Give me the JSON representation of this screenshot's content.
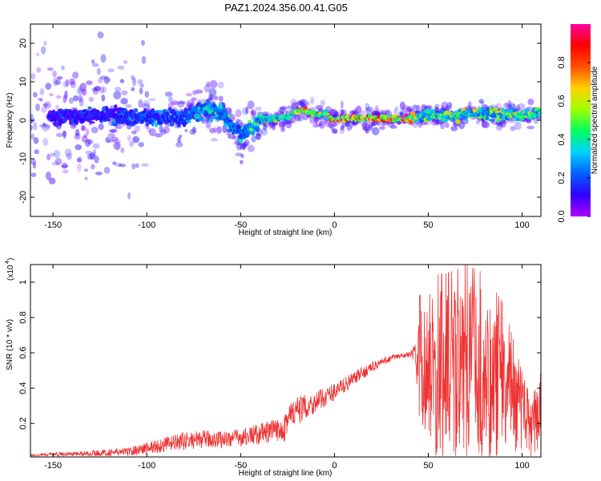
{
  "title": "PAZ1.2024.356.00.41.G05",
  "chart_data": [
    {
      "type": "heatmap",
      "xlabel": "Height of straight line (km)",
      "ylabel": "Frequency (Hz)",
      "xlim": [
        -162,
        110
      ],
      "ylim": [
        -25,
        25
      ],
      "xticks": [
        -150,
        -100,
        -50,
        0,
        50,
        100
      ],
      "yticks": [
        -20,
        -10,
        0,
        10,
        20
      ],
      "colorbar": {
        "label": "Normalized spectral amplitude",
        "range": [
          0,
          1
        ],
        "ticks": [
          0.0,
          0.2,
          0.4,
          0.6,
          0.8
        ],
        "colormap": [
          "#b000ff",
          "#3000ff",
          "#0060ff",
          "#00d0ff",
          "#00ff60",
          "#a0ff00",
          "#ffd000",
          "#ff5000",
          "#ff0000",
          "#ff00a0"
        ]
      },
      "ridge": {
        "x": [
          -140,
          -120,
          -100,
          -80,
          -70,
          -60,
          -50,
          -40,
          -30,
          -25,
          -20,
          -15,
          -10,
          -5,
          0,
          5,
          10,
          20,
          30,
          40,
          45,
          50,
          60,
          70,
          80,
          90,
          100,
          110
        ],
        "y": [
          1.0,
          1.5,
          0.5,
          0.5,
          3.0,
          2.0,
          -4.0,
          0.0,
          0.5,
          1.0,
          2.5,
          2.5,
          1.5,
          1.5,
          0.0,
          0.5,
          0.5,
          0.5,
          0.5,
          0.5,
          1.0,
          1.5,
          1.0,
          1.5,
          1.5,
          1.5,
          1.5,
          2.0
        ],
        "amplitude": [
          0.18,
          0.22,
          0.28,
          0.3,
          0.42,
          0.45,
          0.35,
          0.5,
          0.55,
          0.6,
          0.95,
          0.9,
          0.7,
          0.6,
          0.95,
          0.9,
          0.95,
          0.95,
          0.95,
          0.95,
          0.45,
          0.5,
          0.55,
          0.6,
          0.55,
          0.55,
          0.6,
          0.5
        ]
      }
    },
    {
      "type": "line",
      "xlabel": "Height of straight line (km)",
      "ylabel": "SNR (10 * v/v)",
      "scale_label": "(x10",
      "scale_exponent": "4",
      "xlim": [
        -162,
        110
      ],
      "ylim": [
        0.01,
        1.1
      ],
      "xticks": [
        -150,
        -100,
        -50,
        0,
        50,
        100
      ],
      "yticks": [
        0.2,
        0.4,
        0.6,
        0.8,
        1.0
      ],
      "color": "#ee3333",
      "series": [
        {
          "x": [
            -162,
            -150,
            -130,
            -110,
            -100,
            -90,
            -80,
            -70,
            -60,
            -50,
            -40,
            -30,
            -25,
            -20,
            -10,
            0,
            10,
            20,
            30,
            40,
            43,
            45,
            50,
            60,
            70,
            80,
            90,
            100,
            105,
            110
          ],
          "y": [
            0.02,
            0.025,
            0.03,
            0.04,
            0.06,
            0.08,
            0.1,
            0.11,
            0.11,
            0.12,
            0.14,
            0.16,
            0.22,
            0.27,
            0.32,
            0.38,
            0.45,
            0.52,
            0.57,
            0.59,
            0.6,
            0.55,
            0.5,
            0.45,
            0.5,
            0.45,
            0.4,
            0.25,
            0.15,
            0.25
          ],
          "noise": [
            0.005,
            0.01,
            0.015,
            0.025,
            0.035,
            0.045,
            0.05,
            0.05,
            0.05,
            0.05,
            0.06,
            0.07,
            0.12,
            0.08,
            0.06,
            0.05,
            0.04,
            0.03,
            0.02,
            0.015,
            0.05,
            0.3,
            0.45,
            0.5,
            0.5,
            0.5,
            0.4,
            0.2,
            0.15,
            0.2
          ]
        }
      ]
    }
  ]
}
